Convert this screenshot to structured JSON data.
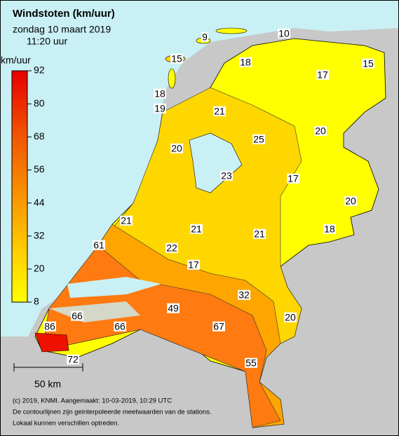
{
  "header": {
    "title": "Windstoten (km/uur)",
    "date": "zondag 10 maart 2019",
    "time": "11:20 uur"
  },
  "legend": {
    "unit": "km/uur",
    "ticks": [
      92,
      80,
      68,
      56,
      44,
      32,
      20,
      8
    ]
  },
  "stations": [
    9,
    10,
    15,
    18,
    17,
    15,
    18,
    19,
    21,
    20,
    25,
    20,
    23,
    17,
    20,
    21,
    21,
    21,
    18,
    61,
    22,
    17,
    32,
    49,
    20,
    66,
    66,
    67,
    86,
    55,
    72
  ],
  "scale_bar": "50 km",
  "footer": [
    "(c) 2019, KNMI. Aangemaakt: 10-03-2019, 10:29 UTC",
    "De contourlijnen zijn geinterpoleerde meetwaarden van de stations.",
    "Lokaal kunnen verschillen optreden."
  ]
}
